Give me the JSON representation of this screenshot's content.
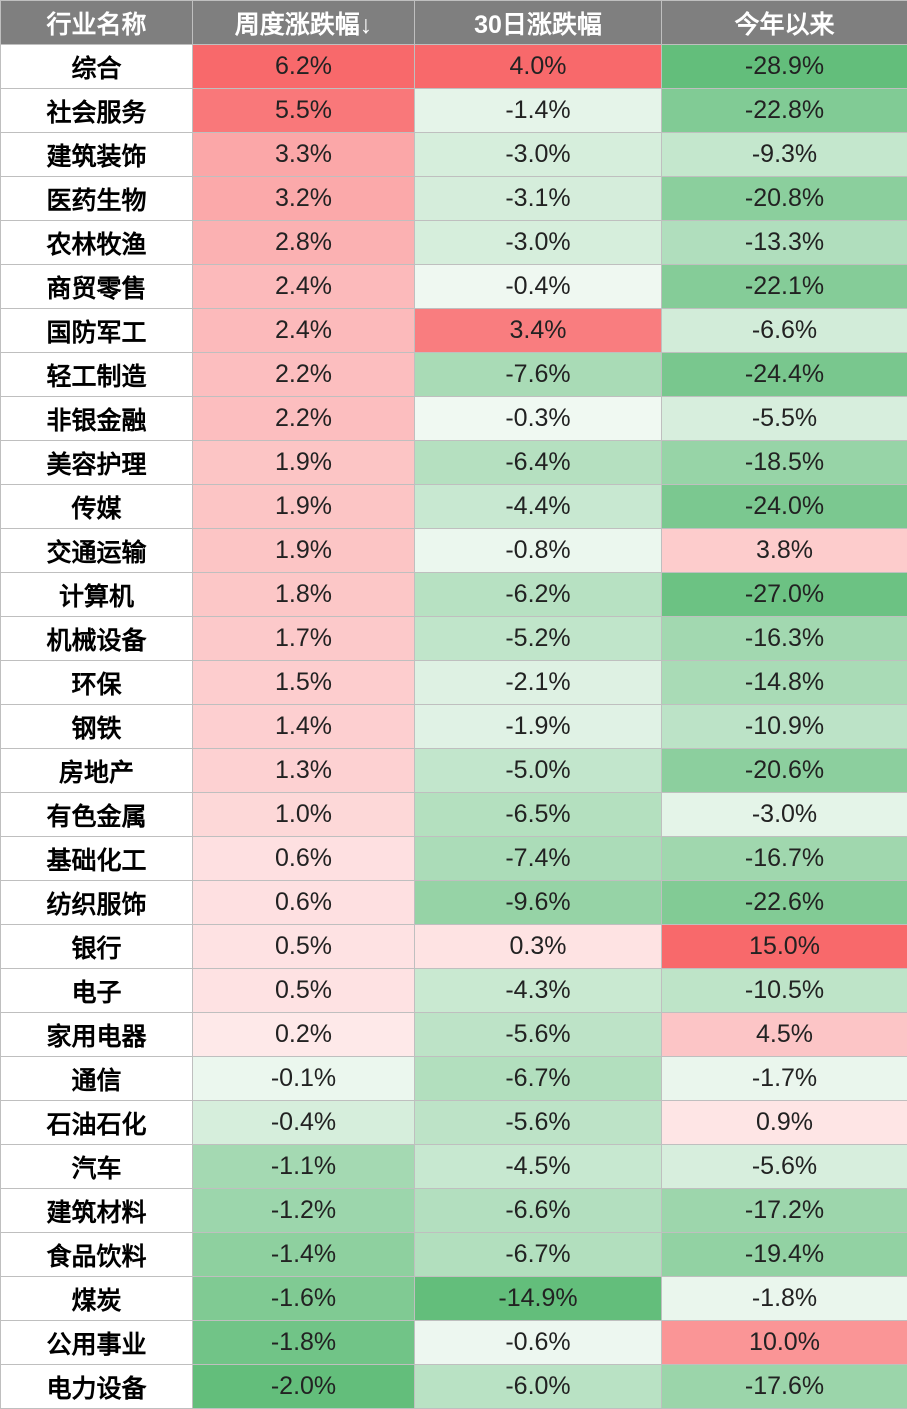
{
  "chart_data": {
    "type": "heatmap",
    "columns": [
      "行业名称",
      "周度涨跌幅↓",
      "30日涨跌幅",
      "今年以来"
    ],
    "rows": [
      {
        "industry": "综合",
        "weekly": 6.2,
        "d30": 4.0,
        "ytd": -28.9
      },
      {
        "industry": "社会服务",
        "weekly": 5.5,
        "d30": -1.4,
        "ytd": -22.8
      },
      {
        "industry": "建筑装饰",
        "weekly": 3.3,
        "d30": -3.0,
        "ytd": -9.3
      },
      {
        "industry": "医药生物",
        "weekly": 3.2,
        "d30": -3.1,
        "ytd": -20.8
      },
      {
        "industry": "农林牧渔",
        "weekly": 2.8,
        "d30": -3.0,
        "ytd": -13.3
      },
      {
        "industry": "商贸零售",
        "weekly": 2.4,
        "d30": -0.4,
        "ytd": -22.1
      },
      {
        "industry": "国防军工",
        "weekly": 2.4,
        "d30": 3.4,
        "ytd": -6.6
      },
      {
        "industry": "轻工制造",
        "weekly": 2.2,
        "d30": -7.6,
        "ytd": -24.4
      },
      {
        "industry": "非银金融",
        "weekly": 2.2,
        "d30": -0.3,
        "ytd": -5.5
      },
      {
        "industry": "美容护理",
        "weekly": 1.9,
        "d30": -6.4,
        "ytd": -18.5
      },
      {
        "industry": "传媒",
        "weekly": 1.9,
        "d30": -4.4,
        "ytd": -24.0
      },
      {
        "industry": "交通运输",
        "weekly": 1.9,
        "d30": -0.8,
        "ytd": 3.8
      },
      {
        "industry": "计算机",
        "weekly": 1.8,
        "d30": -6.2,
        "ytd": -27.0
      },
      {
        "industry": "机械设备",
        "weekly": 1.7,
        "d30": -5.2,
        "ytd": -16.3
      },
      {
        "industry": "环保",
        "weekly": 1.5,
        "d30": -2.1,
        "ytd": -14.8
      },
      {
        "industry": "钢铁",
        "weekly": 1.4,
        "d30": -1.9,
        "ytd": -10.9
      },
      {
        "industry": "房地产",
        "weekly": 1.3,
        "d30": -5.0,
        "ytd": -20.6
      },
      {
        "industry": "有色金属",
        "weekly": 1.0,
        "d30": -6.5,
        "ytd": -3.0
      },
      {
        "industry": "基础化工",
        "weekly": 0.6,
        "d30": -7.4,
        "ytd": -16.7
      },
      {
        "industry": "纺织服饰",
        "weekly": 0.6,
        "d30": -9.6,
        "ytd": -22.6
      },
      {
        "industry": "银行",
        "weekly": 0.5,
        "d30": 0.3,
        "ytd": 15.0
      },
      {
        "industry": "电子",
        "weekly": 0.5,
        "d30": -4.3,
        "ytd": -10.5
      },
      {
        "industry": "家用电器",
        "weekly": 0.2,
        "d30": -5.6,
        "ytd": 4.5
      },
      {
        "industry": "通信",
        "weekly": -0.1,
        "d30": -6.7,
        "ytd": -1.7
      },
      {
        "industry": "石油石化",
        "weekly": -0.4,
        "d30": -5.6,
        "ytd": 0.9
      },
      {
        "industry": "汽车",
        "weekly": -1.1,
        "d30": -4.5,
        "ytd": -5.6
      },
      {
        "industry": "建筑材料",
        "weekly": -1.2,
        "d30": -6.6,
        "ytd": -17.2
      },
      {
        "industry": "食品饮料",
        "weekly": -1.4,
        "d30": -6.7,
        "ytd": -19.4
      },
      {
        "industry": "煤炭",
        "weekly": -1.6,
        "d30": -14.9,
        "ytd": -1.8
      },
      {
        "industry": "公用事业",
        "weekly": -1.8,
        "d30": -0.6,
        "ytd": 10.0
      },
      {
        "industry": "电力设备",
        "weekly": -2.0,
        "d30": -6.0,
        "ytd": -17.6
      }
    ],
    "colors": {
      "header_bg": "#7f7f7f",
      "header_text": "#ffffff",
      "neutral": "#ffffff",
      "positive_max": "#f8696b",
      "negative_max": "#63be7b",
      "grid": "#bfbfbf"
    }
  }
}
